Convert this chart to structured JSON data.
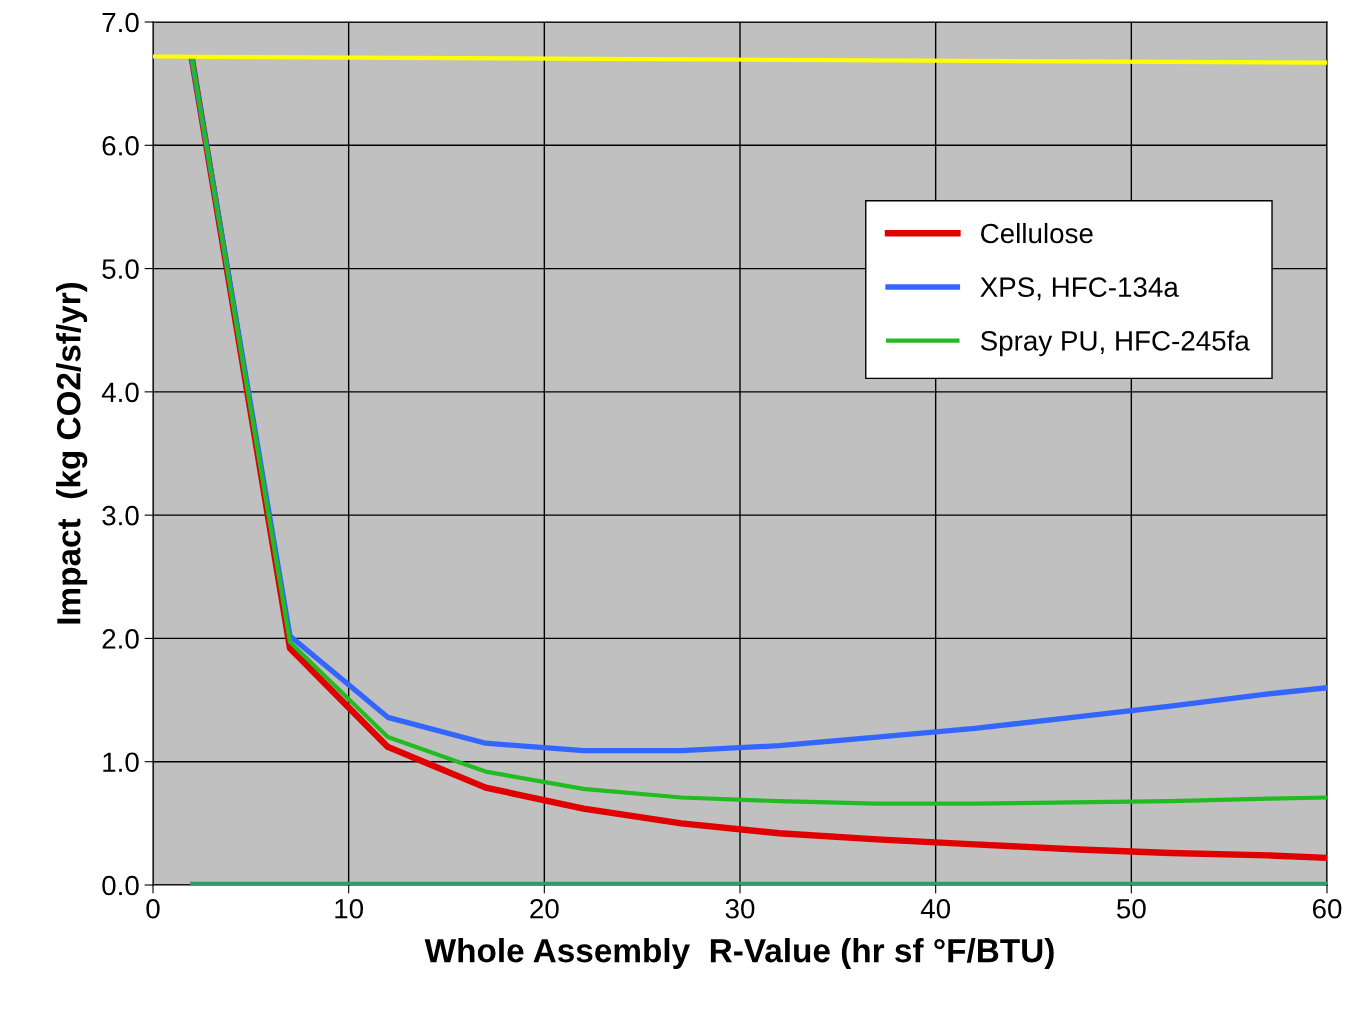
{
  "chart_data": {
    "type": "line",
    "xlabel": "Whole Assembly  R-Value (hr sf °F/BTU)",
    "ylabel": "Impact  (kg CO2/sf/yr)",
    "xlim": [
      0,
      60
    ],
    "xticks": [
      0,
      10,
      20,
      30,
      40,
      50,
      60
    ],
    "ylim": [
      0,
      7
    ],
    "yticks": [
      {
        "value": 0,
        "label": "0.0"
      },
      {
        "value": 1,
        "label": "1.0"
      },
      {
        "value": 2,
        "label": "2.0"
      },
      {
        "value": 3,
        "label": "3.0"
      },
      {
        "value": 4,
        "label": "4.0"
      },
      {
        "value": 5,
        "label": "5.0"
      },
      {
        "value": 6,
        "label": "6.0"
      },
      {
        "value": 7,
        "label": "7.0"
      }
    ],
    "grid": true,
    "legend": "right",
    "marker": "none",
    "line_style": "solid",
    "series": [
      {
        "name": "Cellulose",
        "color": "#e00000",
        "x": [
          2,
          7,
          12,
          17,
          22,
          27,
          32,
          37,
          42,
          47,
          52,
          57,
          60
        ],
        "values": [
          6.69,
          1.92,
          1.12,
          0.79,
          0.62,
          0.5,
          0.42,
          0.37,
          0.33,
          0.29,
          0.26,
          0.24,
          0.22
        ]
      },
      {
        "name": "XPS, HFC-134a",
        "color": "#3366ff",
        "x": [
          2,
          7,
          12,
          17,
          22,
          27,
          32,
          37,
          42,
          47,
          52,
          57,
          60
        ],
        "values": [
          6.69,
          2.02,
          1.36,
          1.15,
          1.09,
          1.09,
          1.13,
          1.2,
          1.27,
          1.36,
          1.45,
          1.55,
          1.6
        ]
      },
      {
        "name": "Spray PU, HFC-245fa",
        "color": "#22bb22",
        "x": [
          2,
          7,
          12,
          17,
          22,
          27,
          32,
          37,
          42,
          47,
          52,
          57,
          60
        ],
        "values": [
          6.69,
          1.97,
          1.2,
          0.92,
          0.78,
          0.71,
          0.68,
          0.66,
          0.66,
          0.67,
          0.68,
          0.7,
          0.71
        ]
      },
      {
        "color": "#ffff00",
        "x": [
          0,
          60
        ],
        "values": [
          6.72,
          6.67
        ]
      },
      {
        "color": "#339966",
        "x": [
          2,
          60
        ],
        "values": [
          0.01,
          0.01
        ]
      }
    ]
  }
}
